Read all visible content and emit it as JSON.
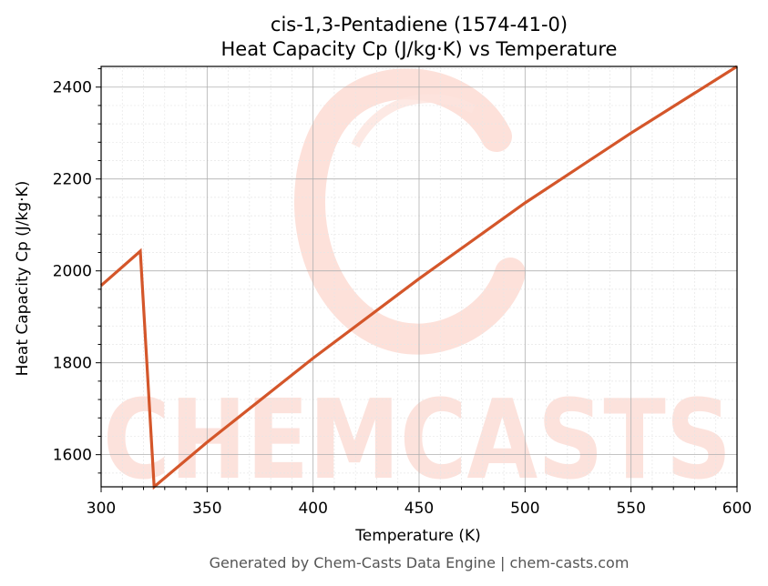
{
  "chart_data": {
    "type": "line",
    "title": "cis-1,3-Pentadiene (1574-41-0)",
    "subtitle": "Heat Capacity Cp (J/kg·K) vs Temperature",
    "xlabel": "Temperature (K)",
    "ylabel": "Heat Capacity Cp (J/kg·K)",
    "xlim": [
      300,
      600
    ],
    "ylim": [
      1530,
      2445
    ],
    "xticks": [
      300,
      350,
      400,
      450,
      500,
      550,
      600
    ],
    "yticks": [
      1600,
      1800,
      2000,
      2200,
      2400
    ],
    "grid": true,
    "line_color": "#d4562a",
    "series": [
      {
        "x": [
          300,
          318.5,
          325,
          350,
          400,
          450,
          500,
          550,
          600
        ],
        "y": [
          1968,
          2043,
          1530,
          1627,
          1810,
          1983,
          2148,
          2300,
          2445
        ]
      }
    ]
  },
  "watermark": {
    "text": "CHEMCASTS",
    "color": "#fcd7ce"
  },
  "footer": "Generated by Chem-Casts Data Engine | chem-casts.com"
}
